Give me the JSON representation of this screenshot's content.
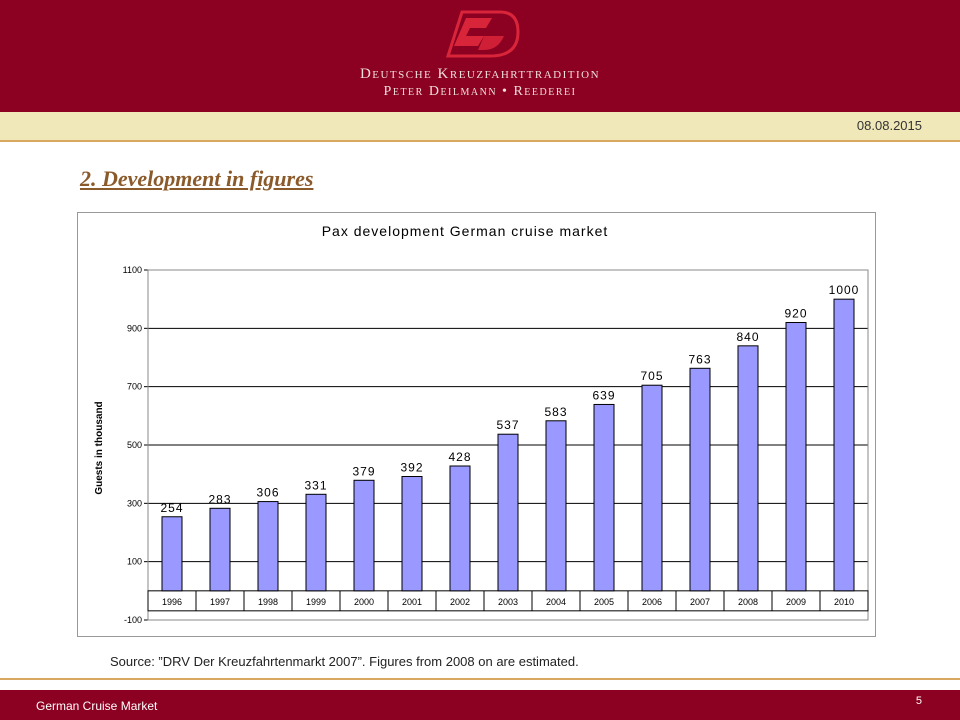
{
  "brand": {
    "line1": "Deutsche Kreuzfahrttradition",
    "line2": "Peter Deilmann • Reederei"
  },
  "date": "08.08.2015",
  "slide_title": "2. Development in figures",
  "source": "Source: ”DRV Der Kreuzfahrtenmarkt 2007”. Figures from 2008 on are estimated.",
  "footer": {
    "text": "German Cruise Market",
    "page": "5"
  },
  "colors": {
    "header": "#8c0021",
    "bar": "#9999ff",
    "title": "#8b5a2b",
    "date_bar": "#f0e8b8"
  },
  "chart_data": {
    "type": "bar",
    "title": "Pax development German cruise market",
    "ylabel": "Guests in thousand",
    "xlabel": "",
    "categories": [
      "1996",
      "1997",
      "1998",
      "1999",
      "2000",
      "2001",
      "2002",
      "2003",
      "2004",
      "2005",
      "2006",
      "2007",
      "2008",
      "2009",
      "2010"
    ],
    "values": [
      254,
      283,
      306,
      331,
      379,
      392,
      428,
      537,
      583,
      639,
      705,
      763,
      840,
      920,
      1000
    ],
    "ylim": [
      -100,
      1100
    ],
    "yticks": [
      -100,
      100,
      300,
      500,
      700,
      900,
      1100
    ],
    "grid": true,
    "legend": "none"
  }
}
